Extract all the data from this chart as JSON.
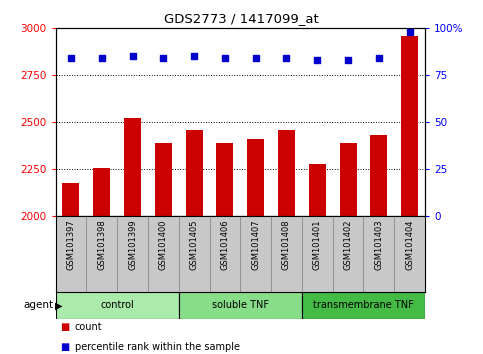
{
  "title": "GDS2773 / 1417099_at",
  "samples": [
    "GSM101397",
    "GSM101398",
    "GSM101399",
    "GSM101400",
    "GSM101405",
    "GSM101406",
    "GSM101407",
    "GSM101408",
    "GSM101401",
    "GSM101402",
    "GSM101403",
    "GSM101404"
  ],
  "counts": [
    2175,
    2255,
    2520,
    2390,
    2460,
    2390,
    2410,
    2460,
    2275,
    2390,
    2430,
    2960
  ],
  "percentile_ranks": [
    84,
    84,
    85,
    84,
    85,
    84,
    84,
    84,
    83,
    83,
    84,
    98
  ],
  "bar_color": "#cc0000",
  "dot_color": "#0000cc",
  "ylim_left": [
    2000,
    3000
  ],
  "ylim_right": [
    0,
    100
  ],
  "yticks_left": [
    2000,
    2250,
    2500,
    2750,
    3000
  ],
  "yticks_right": [
    0,
    25,
    50,
    75,
    100
  ],
  "groups": [
    {
      "label": "control",
      "start": 0,
      "end": 4,
      "color": "#aaeaaa"
    },
    {
      "label": "soluble TNF",
      "start": 4,
      "end": 8,
      "color": "#88dd88"
    },
    {
      "label": "transmembrane TNF",
      "start": 8,
      "end": 12,
      "color": "#44bb44"
    }
  ],
  "group_row_label": "agent",
  "legend_count_label": "count",
  "legend_percentile_label": "percentile rank within the sample",
  "tick_area_color": "#c8c8c8",
  "grid_color": "#000000",
  "figsize": [
    4.83,
    3.54
  ],
  "dpi": 100
}
